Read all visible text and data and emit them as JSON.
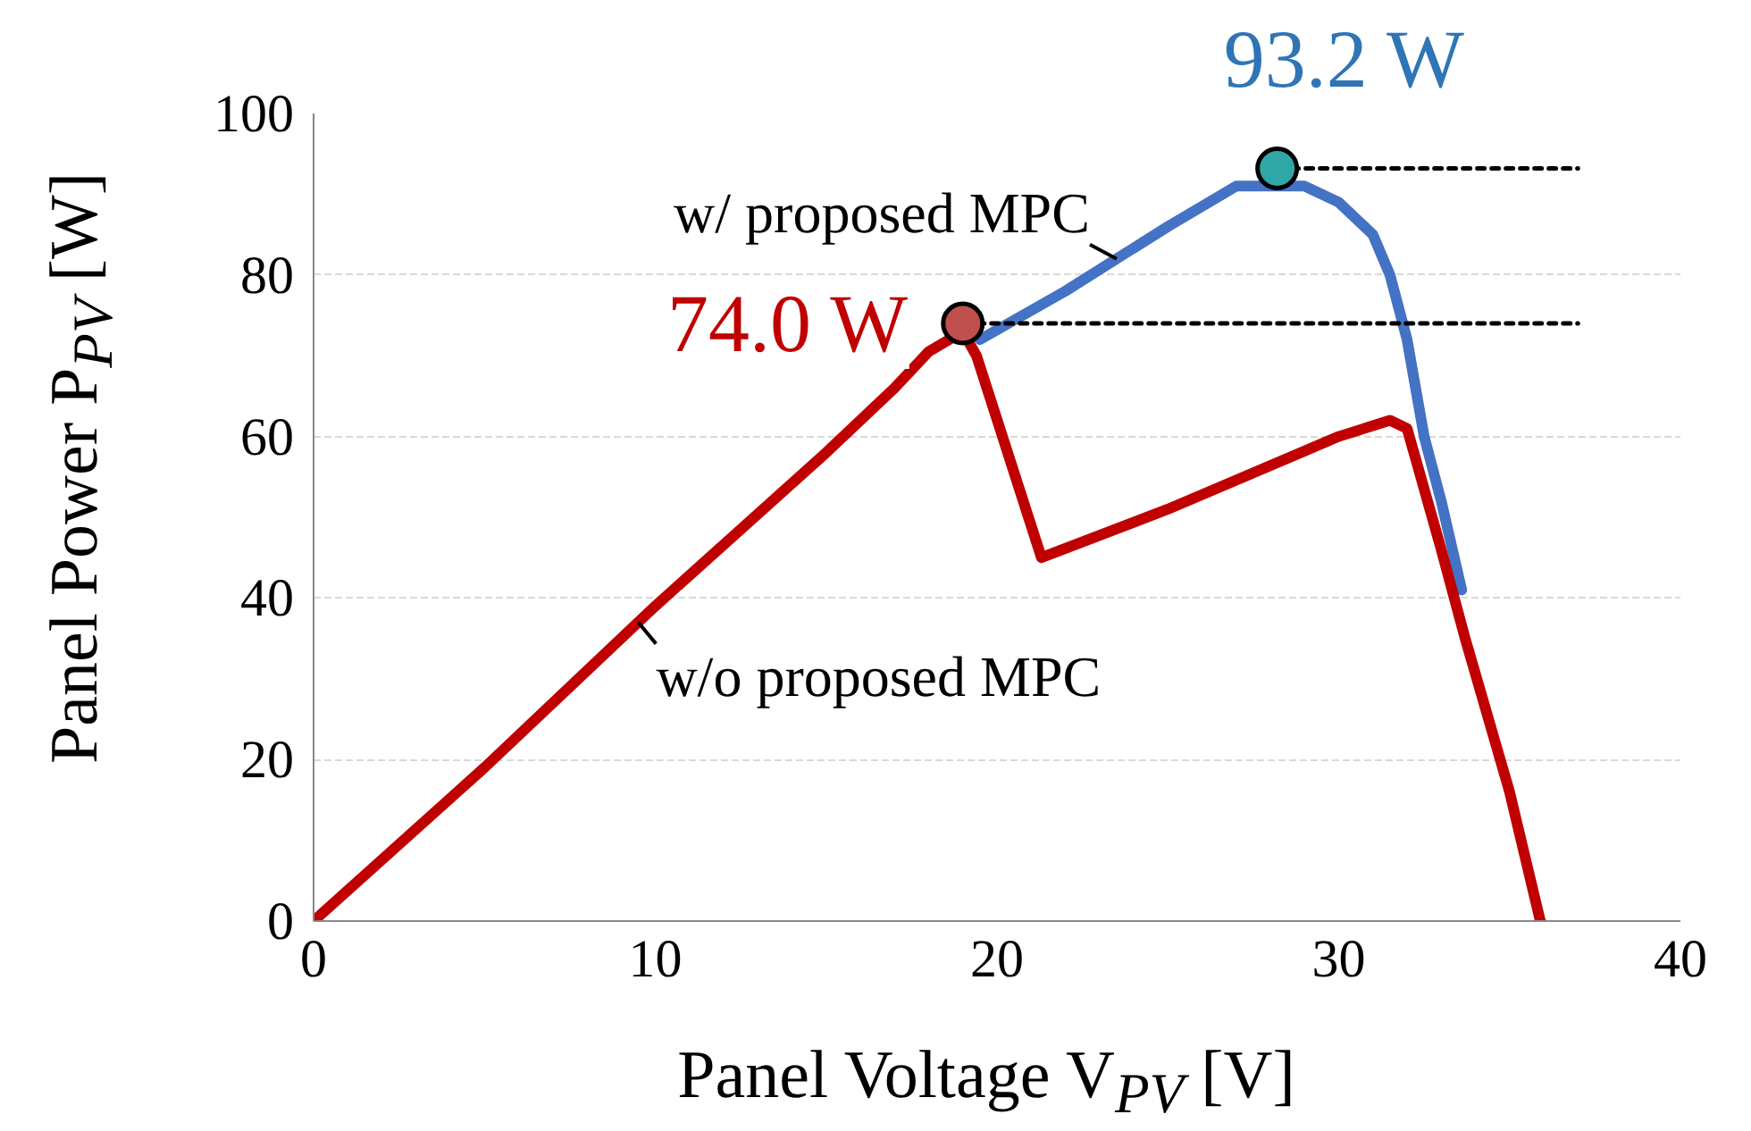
{
  "chart_data": {
    "type": "line",
    "xlabel": "Panel Voltage V$_{PV}$ [V]",
    "ylabel": "Panel Power P$_{PV}$ [W]",
    "xlim": [
      0,
      40
    ],
    "ylim": [
      0,
      100
    ],
    "xticks": [
      0,
      10,
      20,
      30,
      40
    ],
    "yticks": [
      0,
      20,
      40,
      60,
      80,
      100
    ],
    "grid": "y",
    "marker": "none",
    "line_style": "solid",
    "series": [
      {
        "color": "#4472c4",
        "x": [
          19.5,
          22,
          25,
          27,
          29,
          30,
          31,
          31.5,
          32,
          32.5,
          33,
          33.6
        ],
        "values": [
          72,
          78,
          86,
          91,
          91,
          89,
          85,
          80,
          72,
          60,
          52,
          41
        ]
      },
      {
        "color": "#c00000",
        "x": [
          0,
          5,
          10,
          15,
          17,
          18,
          19,
          19.4,
          21.3,
          25,
          30,
          31.5,
          32,
          33,
          33.7,
          35,
          35.9
        ],
        "values": [
          0,
          19,
          39,
          58,
          66,
          70.5,
          73,
          70,
          45,
          51,
          60,
          62,
          61,
          46,
          35,
          16,
          0
        ]
      },
      {
        "color": "#000000",
        "line_style": "dashed",
        "x": [
          19,
          37
        ],
        "values": [
          74.0,
          74.0
        ]
      },
      {
        "color": "#000000",
        "line_style": "dashed",
        "x": [
          28.2,
          37
        ],
        "values": [
          93.2,
          93.2
        ]
      },
      {
        "type": "scatter",
        "marker": "circle",
        "x": [
          19,
          28.2
        ],
        "values": [
          74.0,
          93.2
        ],
        "colors": [
          "#c0504d",
          "#31a6a6"
        ]
      }
    ],
    "annotations": [
      {
        "text": "74.0 W",
        "x": 19,
        "y": 74.0
      },
      {
        "text": "93.2 W",
        "x": 28.2,
        "y": 93.2
      },
      {
        "text": "w/ proposed MPC",
        "x": 23.5,
        "y": 82
      },
      {
        "text": "w/o proposed MPC",
        "x": 9.5,
        "y": 37
      }
    ]
  }
}
